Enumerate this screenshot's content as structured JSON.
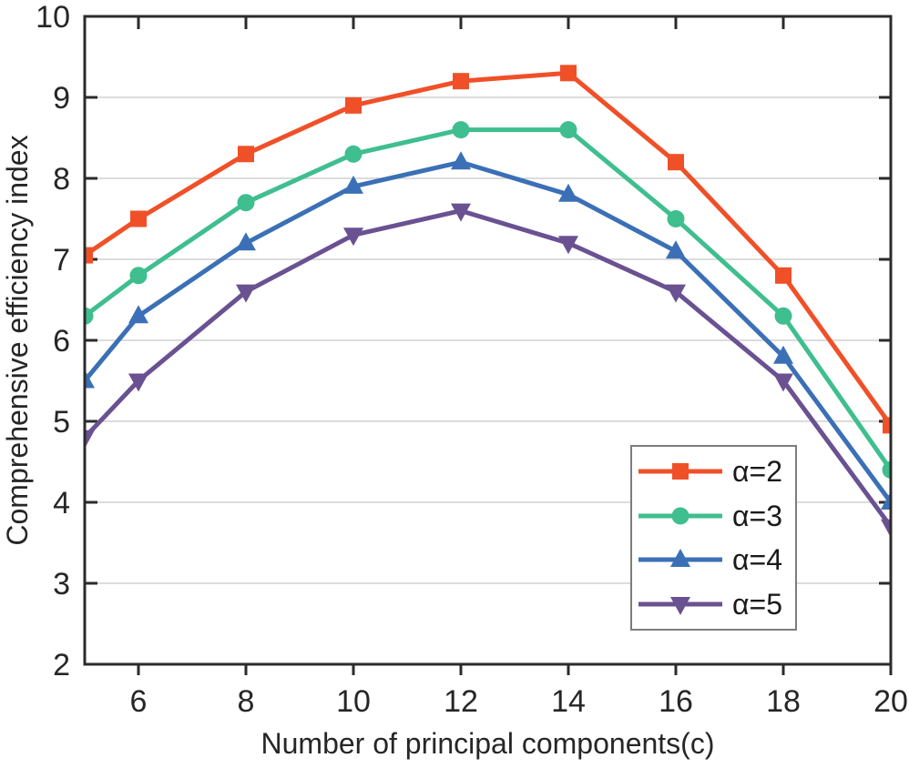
{
  "chart_data": {
    "type": "line",
    "title": "",
    "xlabel": "Number of principal components(c)",
    "ylabel": "Comprehensive efficiency index",
    "xlim": [
      5,
      20
    ],
    "ylim": [
      2,
      10
    ],
    "x_ticks": [
      6,
      8,
      10,
      12,
      14,
      16,
      18,
      20
    ],
    "y_ticks": [
      2,
      3,
      4,
      5,
      6,
      7,
      8,
      9,
      10
    ],
    "grid": "horizontal-only",
    "legend_position": "lower-right",
    "axis_color": "#2b2b2b",
    "grid_color": "#c6c6c6",
    "tick_label_color": "#262626",
    "background_color": "#ffffff",
    "x": [
      5,
      6,
      8,
      10,
      12,
      14,
      16,
      18,
      20
    ],
    "series": [
      {
        "name": "α=2",
        "marker": "square",
        "color": "#F05028",
        "values": [
          7.05,
          7.5,
          8.3,
          8.9,
          9.2,
          9.3,
          8.2,
          6.8,
          4.95
        ]
      },
      {
        "name": "α=3",
        "marker": "circle",
        "color": "#3FBE8F",
        "values": [
          6.3,
          6.8,
          7.7,
          8.3,
          8.6,
          8.6,
          7.5,
          6.3,
          4.4
        ]
      },
      {
        "name": "α=4",
        "marker": "triangle-up",
        "color": "#3B70B6",
        "values": [
          5.5,
          6.3,
          7.2,
          7.9,
          8.2,
          7.8,
          7.1,
          5.8,
          4.0
        ]
      },
      {
        "name": "α=5",
        "marker": "triangle-down",
        "color": "#6A5192",
        "values": [
          4.8,
          5.5,
          6.6,
          7.3,
          7.6,
          7.2,
          6.6,
          5.5,
          3.7
        ]
      }
    ]
  }
}
